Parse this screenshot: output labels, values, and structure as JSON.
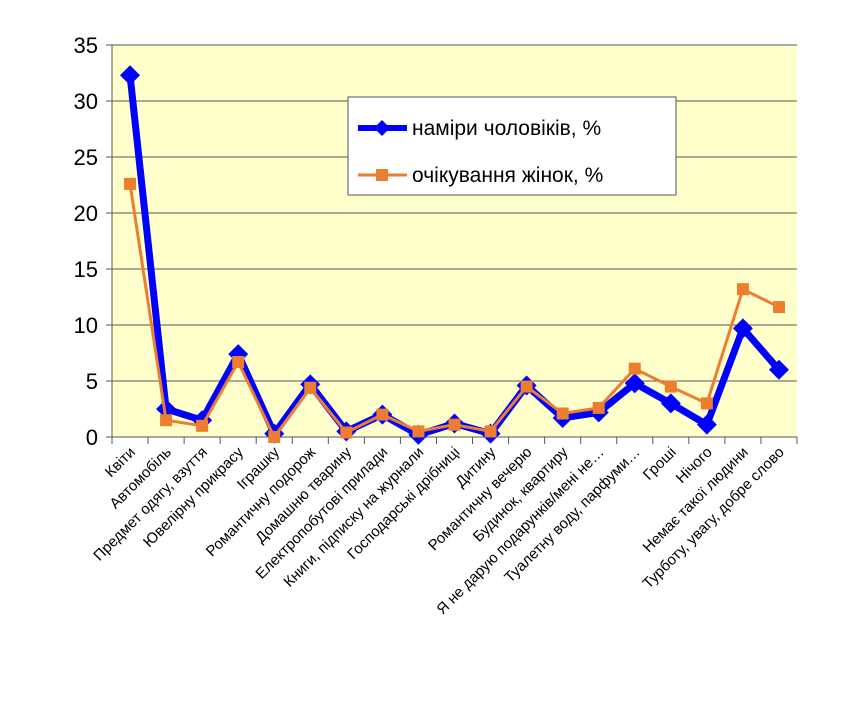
{
  "chart_data": {
    "type": "line",
    "categories": [
      "Квіти",
      "Автомобіль",
      "Предмет одягу, взуття",
      "Ювелірну прикрасу",
      "Іграшку",
      "Романтичну подорож",
      "Домашню тварину",
      "Електропобутові прилади",
      "Книги, підписку на журнали",
      "Господарські дрібниці",
      "Дитину",
      "Романтичну вечерю",
      "Будинок, квартиру",
      "Я не дарую подарунків/мені не…",
      "Туалетну воду, парфуми…",
      "Гроші",
      "Нічого",
      "Немає такої людини",
      "Турботу, увагу, добре слово"
    ],
    "series": [
      {
        "name": "наміри чоловіків, %",
        "color": "#0000FF",
        "marker": "diamond",
        "values": [
          32.3,
          2.5,
          1.5,
          7.4,
          0.3,
          4.7,
          0.5,
          2.0,
          0.2,
          1.2,
          0.3,
          4.6,
          1.7,
          2.2,
          4.8,
          3.0,
          1.1,
          9.7,
          6.0
        ]
      },
      {
        "name": "очікування жінок, %",
        "color": "#ED7D31",
        "marker": "square",
        "values": [
          22.6,
          1.5,
          1.0,
          6.7,
          0.0,
          4.4,
          0.4,
          2.0,
          0.5,
          1.1,
          0.5,
          4.5,
          2.1,
          2.6,
          6.1,
          4.5,
          3.0,
          13.2,
          11.6
        ]
      }
    ],
    "yticks": [
      "0",
      "5",
      "10",
      "15",
      "20",
      "25",
      "30",
      "35"
    ],
    "ylim": [
      0,
      35
    ],
    "grid": true,
    "legend": "top-center",
    "plot_background": "#FFFFCC"
  }
}
